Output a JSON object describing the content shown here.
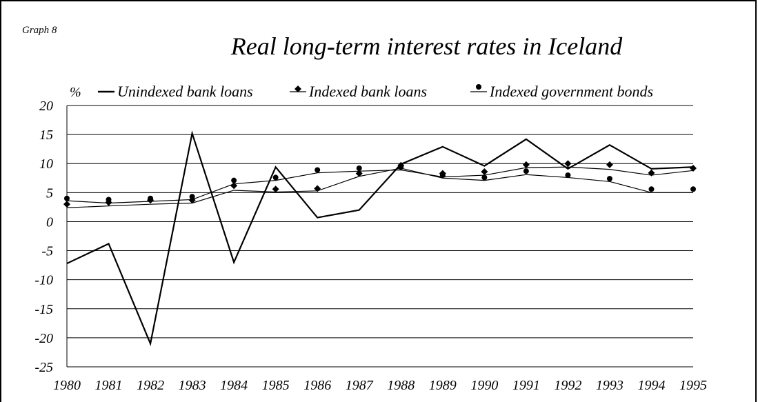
{
  "graph_label": "Graph 8",
  "chart_data": {
    "type": "line",
    "title": "Real long-term interest rates in Iceland",
    "unit_label": "%",
    "x": [
      1980,
      1981,
      1982,
      1983,
      1984,
      1985,
      1986,
      1987,
      1988,
      1989,
      1990,
      1991,
      1992,
      1993,
      1994,
      1995
    ],
    "ylim": [
      -25,
      20
    ],
    "yticks": [
      20,
      15,
      10,
      5,
      0,
      -5,
      -10,
      -15,
      -20,
      -25
    ],
    "grid": true,
    "legend_position": "top",
    "series": [
      {
        "name": "Unindexed bank loans",
        "marker": "none",
        "values": [
          -7.2,
          -3.8,
          -21.0,
          15.2,
          -7.0,
          9.4,
          0.7,
          2.0,
          9.9,
          12.9,
          9.6,
          14.2,
          9.1,
          13.2,
          9.1,
          9.4
        ]
      },
      {
        "name": "Indexed bank loans",
        "marker": "diamond",
        "values": [
          3.0,
          3.3,
          3.7,
          3.7,
          6.2,
          5.6,
          5.7,
          8.3,
          9.7,
          8.3,
          8.6,
          9.8,
          10.0,
          9.8,
          8.4,
          9.2
        ],
        "line": [
          2.4,
          2.7,
          3.0,
          3.2,
          5.4,
          5.1,
          5.3,
          7.8,
          9.2,
          7.5,
          7.1,
          8.1,
          7.6,
          6.9,
          5.0,
          5.0
        ]
      },
      {
        "name": "Indexed government bonds",
        "marker": "circle",
        "values": [
          4.0,
          3.8,
          4.0,
          4.3,
          7.1,
          7.6,
          8.9,
          9.2,
          9.4,
          8.0,
          7.6,
          8.7,
          8.0,
          7.4,
          5.6,
          5.6
        ],
        "line": [
          3.6,
          3.2,
          3.5,
          3.8,
          6.5,
          7.1,
          8.4,
          8.7,
          8.9,
          7.7,
          8.0,
          9.3,
          9.4,
          9.0,
          8.0,
          8.8
        ]
      }
    ]
  }
}
